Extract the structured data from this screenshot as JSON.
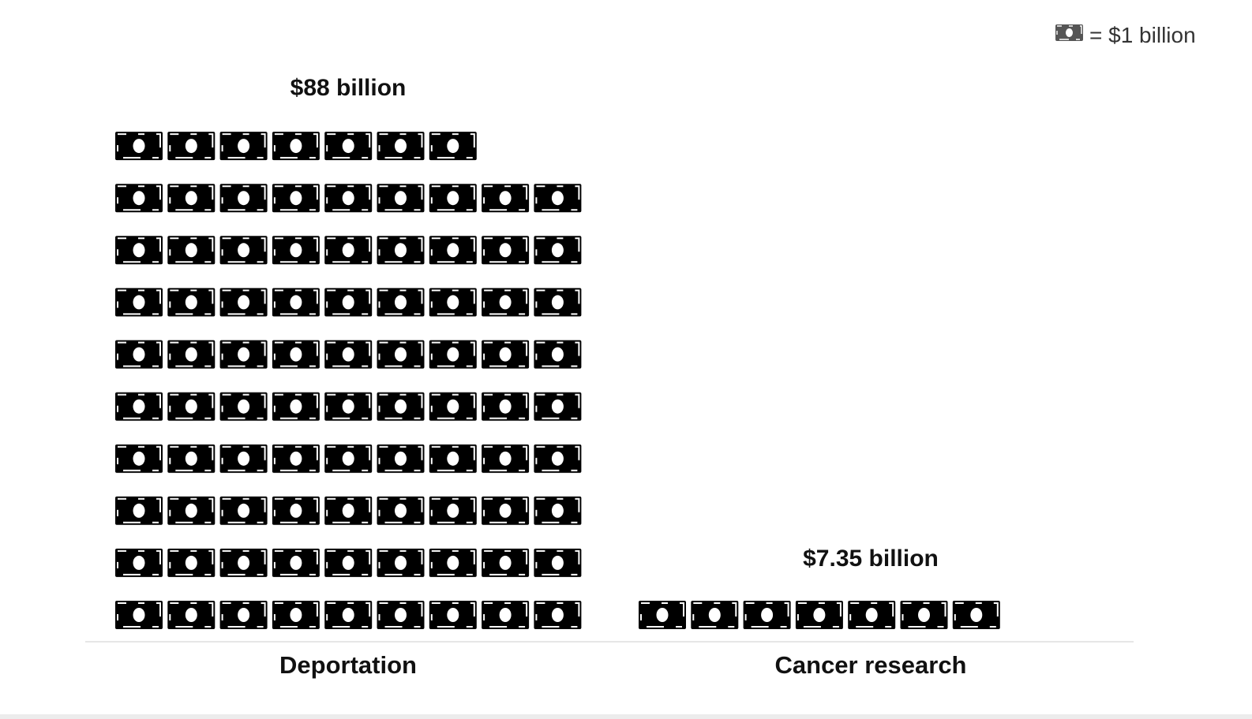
{
  "chart_data": {
    "type": "bar",
    "style": "pictograph",
    "unit_icon": "dollar-bill-icon",
    "unit_value": 1,
    "legend": {
      "text": "= $1 billion",
      "placement": "top-right"
    },
    "categories": [
      "Deportation",
      "Cancer research"
    ],
    "values": [
      88,
      7.35
    ],
    "value_labels": [
      "$88 billion",
      "$7.35 billion"
    ],
    "icons_per_row": 9,
    "grid": false,
    "colors": {
      "icon": "#000000",
      "legend_icon": "#555555",
      "text": "#111111",
      "axis": "#e6e6e6"
    }
  }
}
